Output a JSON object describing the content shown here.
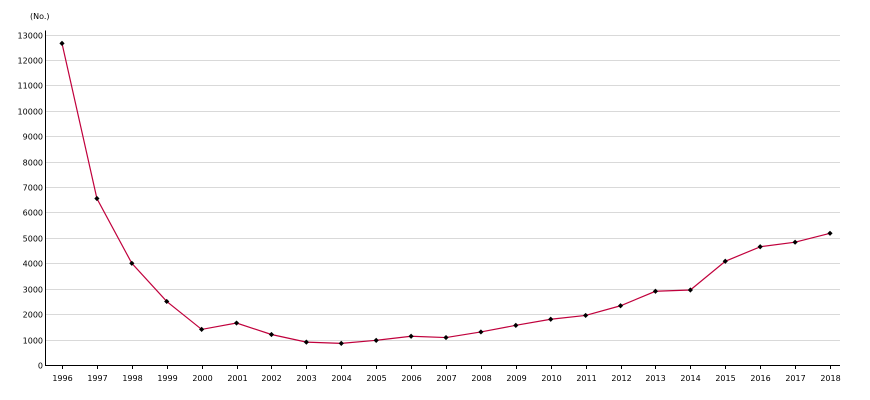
{
  "chart_data": {
    "type": "line",
    "title": "",
    "xlabel": "",
    "ylabel": "(No.)",
    "ylim": [
      0,
      13000
    ],
    "yticks": [
      0,
      1000,
      2000,
      3000,
      4000,
      5000,
      6000,
      7000,
      8000,
      9000,
      10000,
      11000,
      12000,
      13000
    ],
    "grid": true,
    "legend": "none",
    "x": [
      "1996",
      "1997",
      "1998",
      "1999",
      "2000",
      "2001",
      "2002",
      "2003",
      "2004",
      "2005",
      "2006",
      "2007",
      "2008",
      "2009",
      "2010",
      "2011",
      "2012",
      "2013",
      "2014",
      "2015",
      "2016",
      "2017",
      "2018"
    ],
    "series": [
      {
        "color": "#c0003c",
        "marker_color": "#000000",
        "values": [
          12650,
          6550,
          4000,
          2500,
          1400,
          1650,
          1200,
          900,
          850,
          970,
          1130,
          1080,
          1300,
          1560,
          1800,
          1950,
          2330,
          2900,
          2950,
          4080,
          4650,
          4830,
          5180
        ]
      }
    ]
  }
}
